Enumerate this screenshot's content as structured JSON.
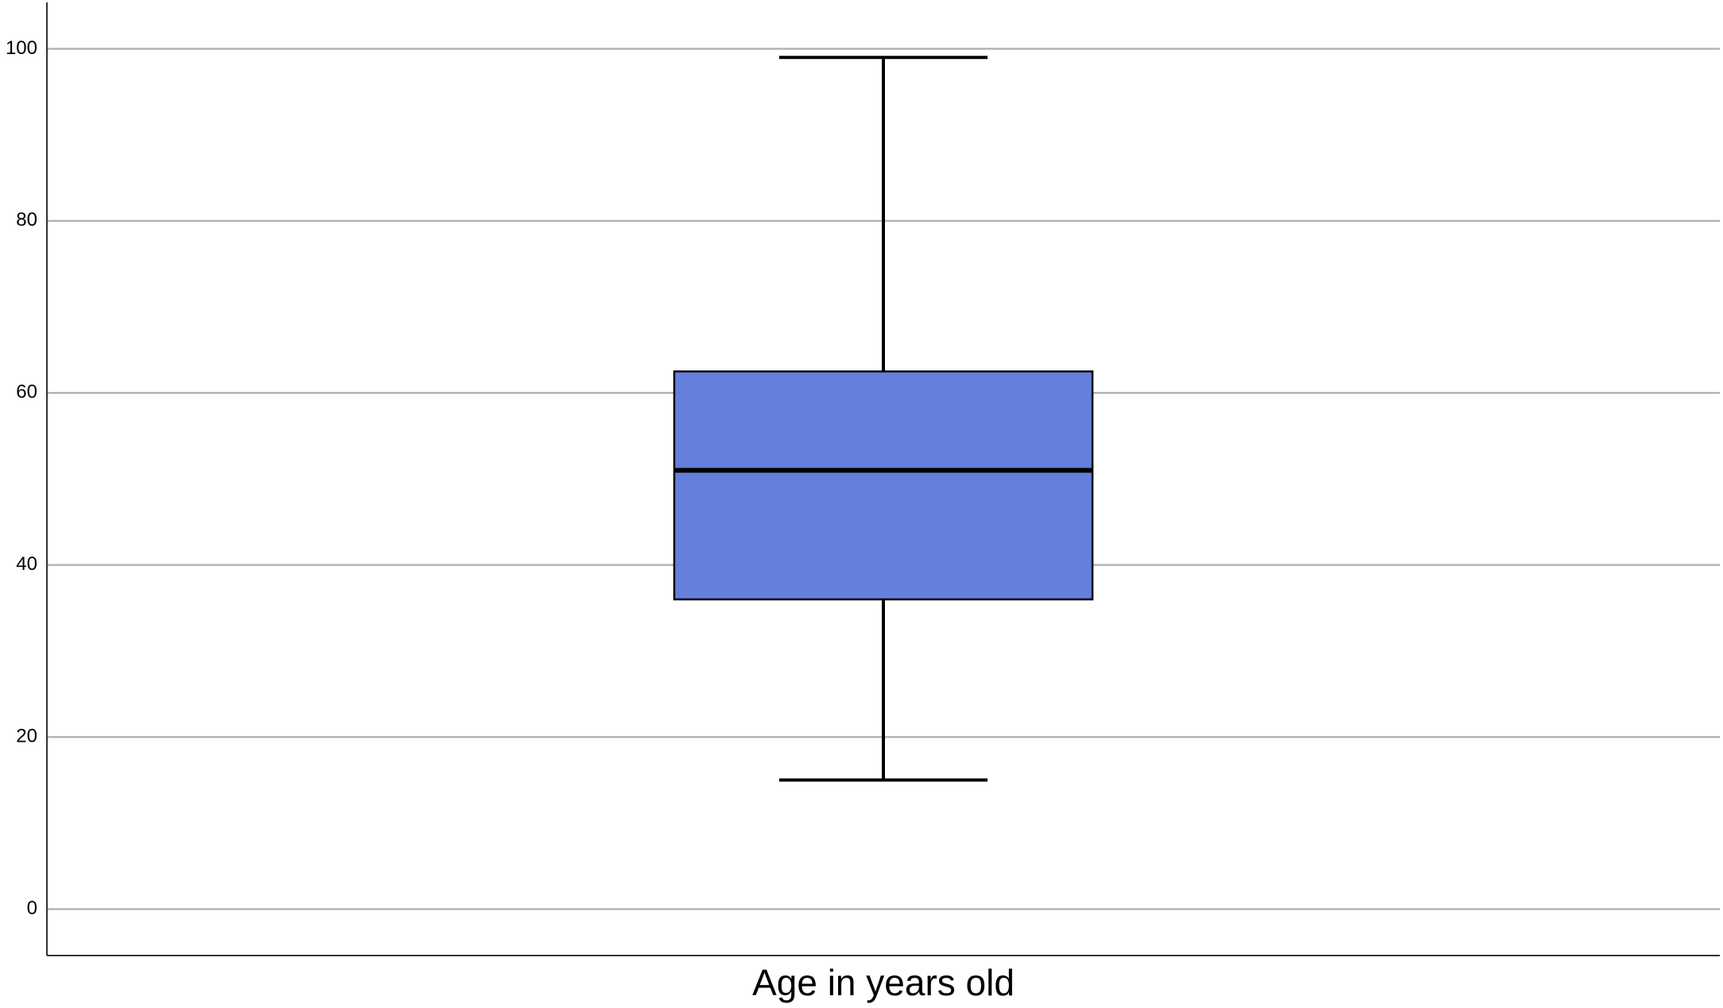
{
  "chart_data": {
    "type": "box",
    "categories": [
      "Age in years old"
    ],
    "boxes": [
      {
        "min": 15,
        "q1": 36,
        "median": 51,
        "q3": 62.5,
        "max": 99
      }
    ],
    "color": "#6480dc",
    "ylim": [
      -5.4,
      105.4
    ],
    "yticks": [
      0,
      20,
      40,
      60,
      80,
      100
    ],
    "grid": true
  }
}
